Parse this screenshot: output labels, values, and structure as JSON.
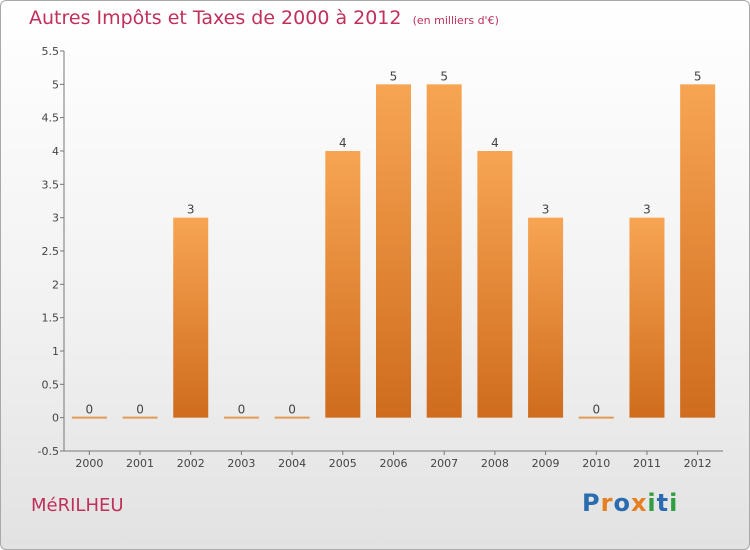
{
  "header": {
    "title": "Autres Impôts et Taxes de 2000 à 2012",
    "unit": "(en milliers d'€)"
  },
  "footer": {
    "place": "MéRILHEU",
    "logo": {
      "letters": [
        "P",
        "r",
        "o",
        "x",
        "i",
        "t",
        "i"
      ],
      "colors": [
        "#2b6cb0",
        "#e67e22",
        "#2b6cb0",
        "#e67e22",
        "#2e9e3e",
        "#2b6cb0",
        "#2e9e3e"
      ]
    }
  },
  "chart_data": {
    "type": "bar",
    "title": "Autres Impôts et Taxes de 2000 à 2012",
    "subtitle": "(en milliers d'€)",
    "categories": [
      "2000",
      "2001",
      "2002",
      "2003",
      "2004",
      "2005",
      "2006",
      "2007",
      "2008",
      "2009",
      "2010",
      "2011",
      "2012"
    ],
    "values": [
      0,
      0,
      3,
      0,
      0,
      4,
      5,
      5,
      4,
      3,
      0,
      3,
      5
    ],
    "data_labels": [
      "0",
      "0",
      "3",
      "0",
      "0",
      "4",
      "5",
      "5",
      "4",
      "3",
      "0",
      "3",
      "5"
    ],
    "y_ticks": [
      "-0.5",
      "0",
      "0.5",
      "1",
      "1.5",
      "2",
      "2.5",
      "3",
      "3.5",
      "4",
      "4.5",
      "5",
      "5.5"
    ],
    "ylim": [
      -0.5,
      5.5
    ],
    "grid": false,
    "legend": "none",
    "colors": {
      "bar_top": "#f7a553",
      "bar_bottom": "#cf6c1d",
      "zero_line": "#e39a53",
      "text": "#444444"
    }
  }
}
